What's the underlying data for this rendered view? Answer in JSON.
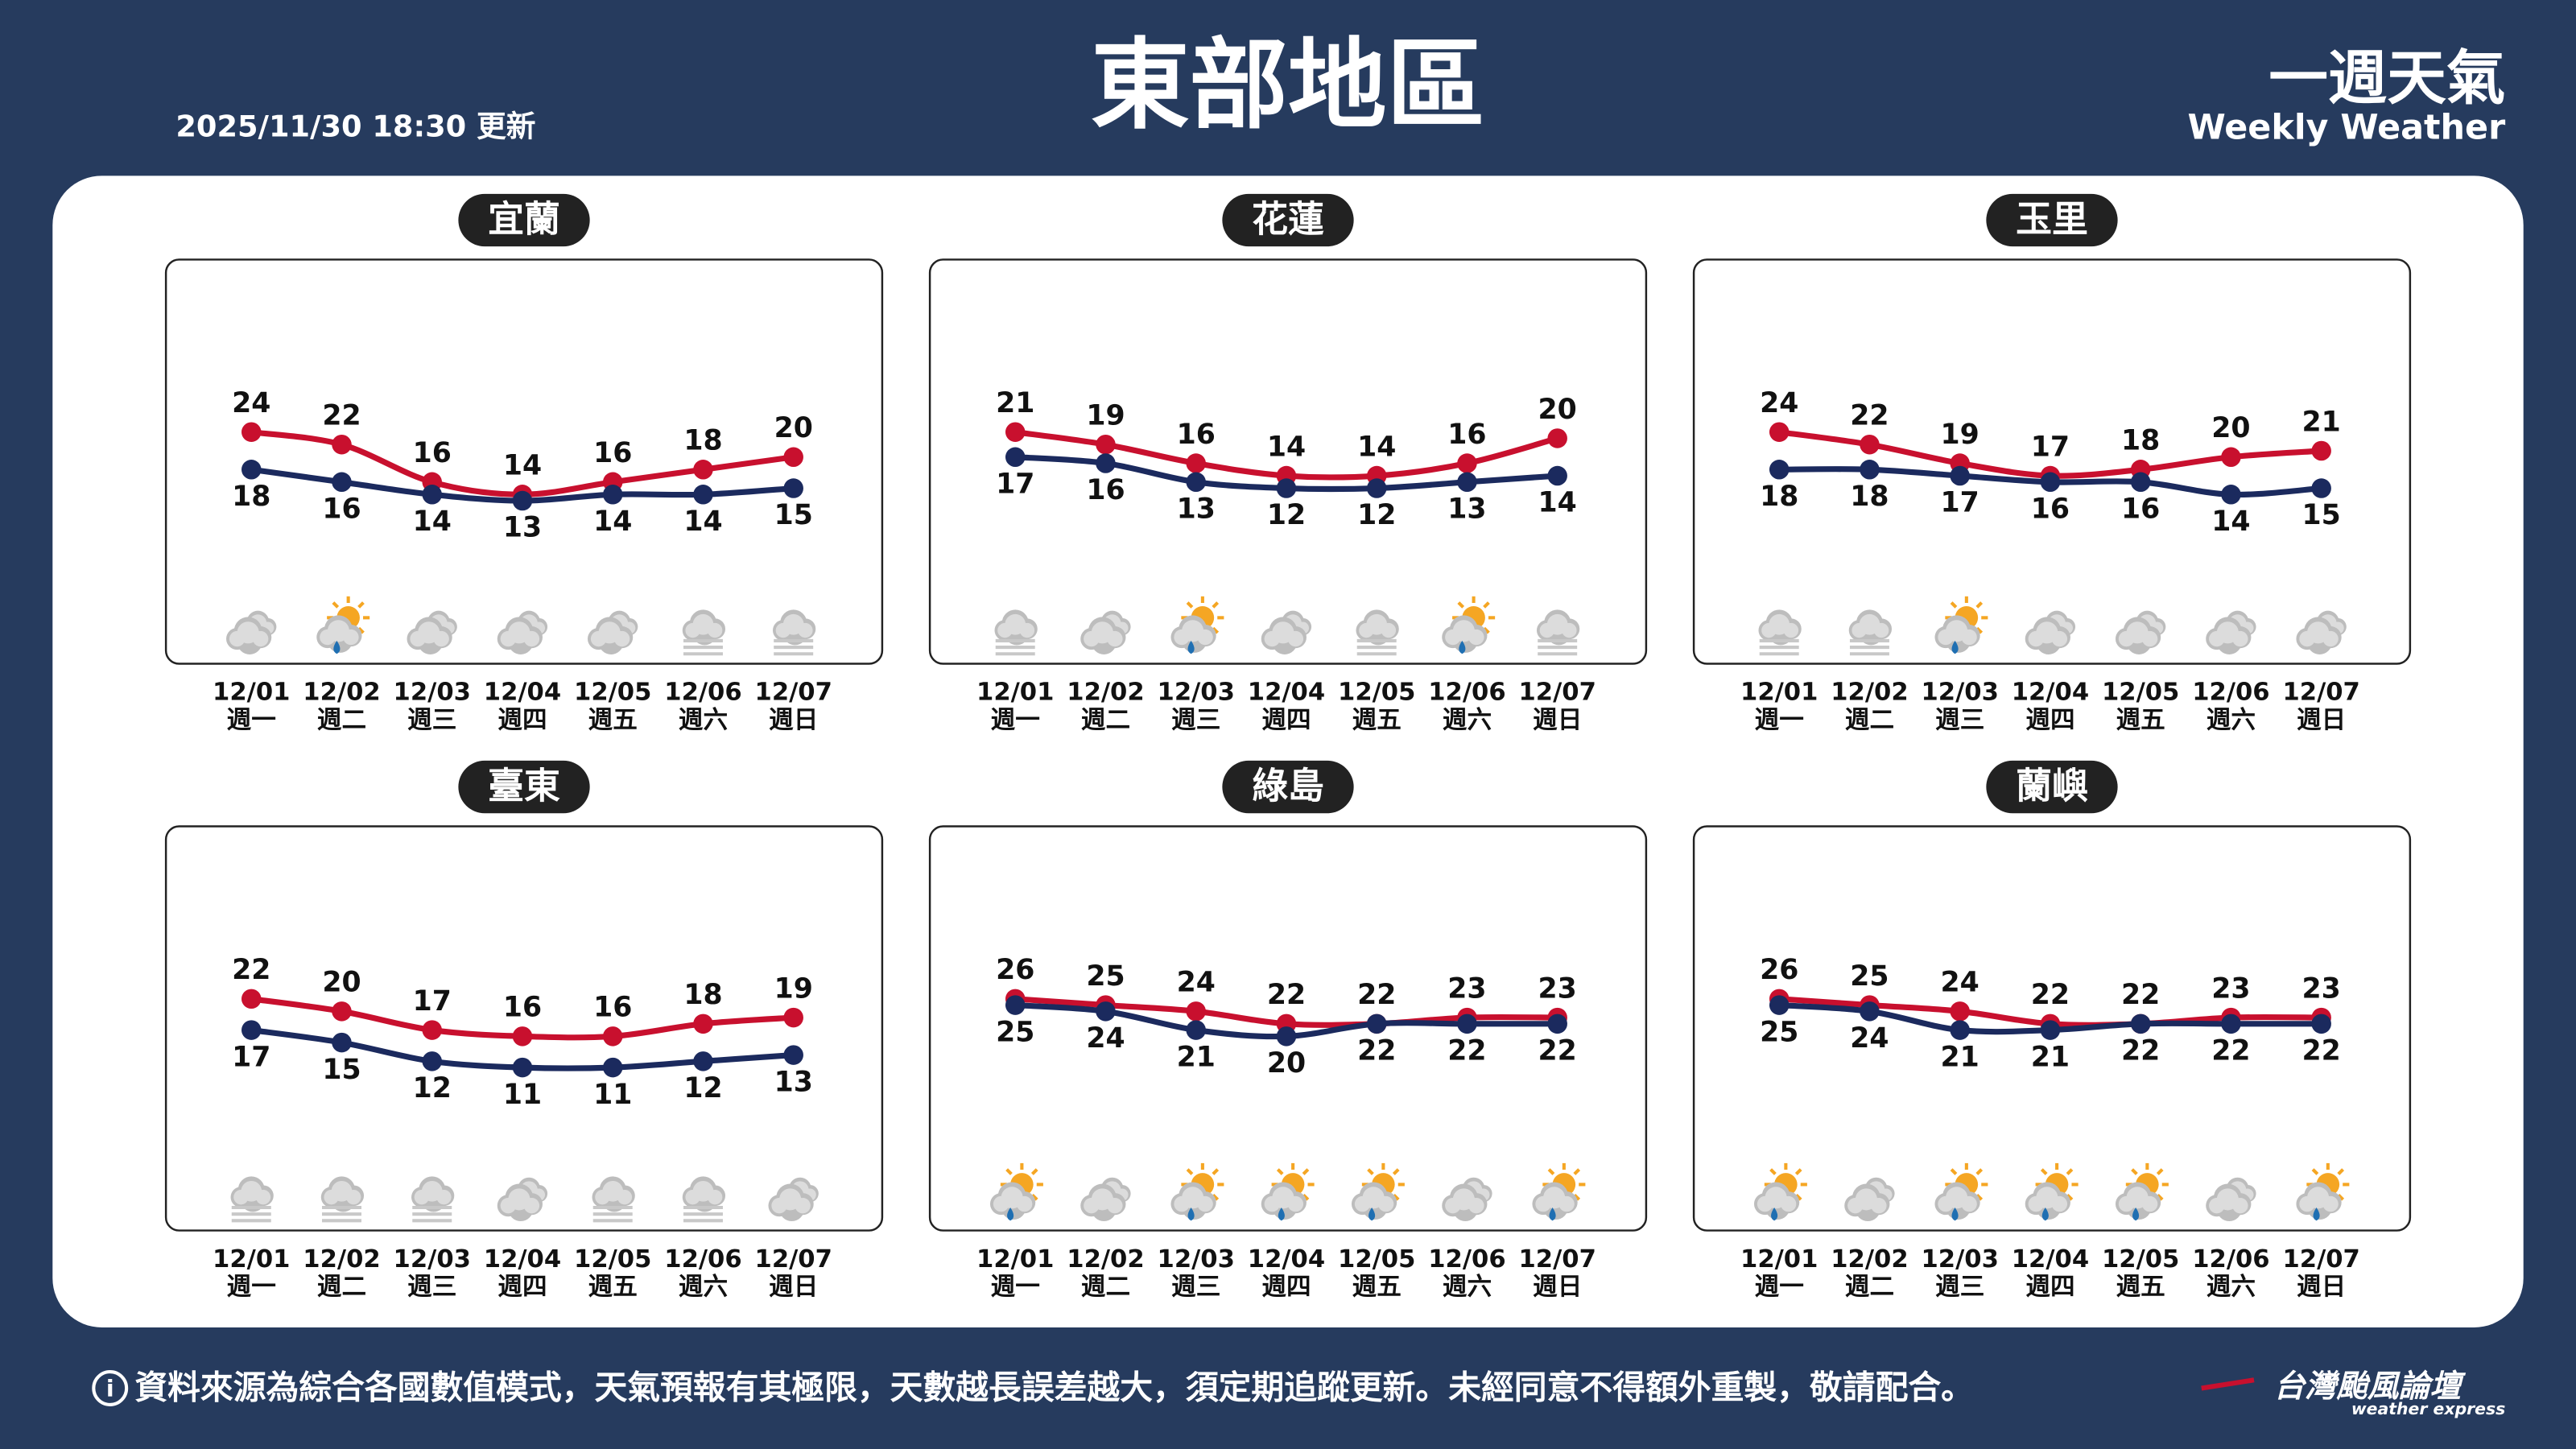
{
  "header": {
    "title": "東部地區",
    "updated": "2025/11/30 18:30 更新",
    "brand": "一週天氣",
    "brand_en": "Weekly Weather"
  },
  "footer": {
    "icon": "i",
    "note": "資料來源為綜合各國數值模式，天氣預報有其極限，天數越長誤差越大，須定期追蹤更新。未經同意不得額外重製，敬請配合。",
    "logo": "台灣颱風論壇",
    "logo_en": "weather express"
  },
  "chart_data": [
    {
      "type": "line",
      "title": "宜蘭",
      "categories": [
        "12/01",
        "12/02",
        "12/03",
        "12/04",
        "12/05",
        "12/06",
        "12/07"
      ],
      "weekdays": [
        "週一",
        "週二",
        "週三",
        "週四",
        "週五",
        "週六",
        "週日"
      ],
      "icons": [
        "cloudy",
        "sun-rain",
        "cloudy",
        "cloudy",
        "cloudy",
        "overcast",
        "overcast"
      ],
      "series": [
        {
          "color": "#c8102e",
          "values": [
            24,
            22,
            16,
            14,
            16,
            18,
            20
          ]
        },
        {
          "color": "#1b2a5e",
          "values": [
            18,
            16,
            14,
            13,
            14,
            14,
            15
          ]
        }
      ]
    },
    {
      "type": "line",
      "title": "花蓮",
      "categories": [
        "12/01",
        "12/02",
        "12/03",
        "12/04",
        "12/05",
        "12/06",
        "12/07"
      ],
      "weekdays": [
        "週一",
        "週二",
        "週三",
        "週四",
        "週五",
        "週六",
        "週日"
      ],
      "icons": [
        "overcast",
        "cloudy",
        "sun-rain",
        "cloudy",
        "overcast",
        "sun-rain",
        "overcast"
      ],
      "series": [
        {
          "color": "#c8102e",
          "values": [
            21,
            19,
            16,
            14,
            14,
            16,
            20
          ]
        },
        {
          "color": "#1b2a5e",
          "values": [
            17,
            16,
            13,
            12,
            12,
            13,
            14
          ]
        }
      ]
    },
    {
      "type": "line",
      "title": "玉里",
      "categories": [
        "12/01",
        "12/02",
        "12/03",
        "12/04",
        "12/05",
        "12/06",
        "12/07"
      ],
      "weekdays": [
        "週一",
        "週二",
        "週三",
        "週四",
        "週五",
        "週六",
        "週日"
      ],
      "icons": [
        "overcast",
        "overcast",
        "sun-rain",
        "cloudy",
        "cloudy",
        "cloudy",
        "cloudy"
      ],
      "series": [
        {
          "color": "#c8102e",
          "values": [
            24,
            22,
            19,
            17,
            18,
            20,
            21
          ]
        },
        {
          "color": "#1b2a5e",
          "values": [
            18,
            18,
            17,
            16,
            16,
            14,
            15
          ]
        }
      ]
    },
    {
      "type": "line",
      "title": "臺東",
      "categories": [
        "12/01",
        "12/02",
        "12/03",
        "12/04",
        "12/05",
        "12/06",
        "12/07"
      ],
      "weekdays": [
        "週一",
        "週二",
        "週三",
        "週四",
        "週五",
        "週六",
        "週日"
      ],
      "icons": [
        "overcast",
        "overcast",
        "overcast",
        "cloudy",
        "overcast",
        "overcast",
        "cloudy"
      ],
      "series": [
        {
          "color": "#c8102e",
          "values": [
            22,
            20,
            17,
            16,
            16,
            18,
            19
          ]
        },
        {
          "color": "#1b2a5e",
          "values": [
            17,
            15,
            12,
            11,
            11,
            12,
            13
          ]
        }
      ]
    },
    {
      "type": "line",
      "title": "綠島",
      "categories": [
        "12/01",
        "12/02",
        "12/03",
        "12/04",
        "12/05",
        "12/06",
        "12/07"
      ],
      "weekdays": [
        "週一",
        "週二",
        "週三",
        "週四",
        "週五",
        "週六",
        "週日"
      ],
      "icons": [
        "sun-rain",
        "cloudy",
        "sun-rain",
        "sun-rain",
        "sun-rain",
        "cloudy",
        "sun-rain"
      ],
      "series": [
        {
          "color": "#c8102e",
          "values": [
            26,
            25,
            24,
            22,
            22,
            23,
            23
          ]
        },
        {
          "color": "#1b2a5e",
          "values": [
            25,
            24,
            21,
            20,
            22,
            22,
            22
          ]
        }
      ]
    },
    {
      "type": "line",
      "title": "蘭嶼",
      "categories": [
        "12/01",
        "12/02",
        "12/03",
        "12/04",
        "12/05",
        "12/06",
        "12/07"
      ],
      "weekdays": [
        "週一",
        "週二",
        "週三",
        "週四",
        "週五",
        "週六",
        "週日"
      ],
      "icons": [
        "sun-rain",
        "cloudy",
        "sun-rain",
        "sun-rain",
        "sun-rain",
        "cloudy",
        "sun-rain"
      ],
      "series": [
        {
          "color": "#c8102e",
          "values": [
            26,
            25,
            24,
            22,
            22,
            23,
            23
          ]
        },
        {
          "color": "#1b2a5e",
          "values": [
            25,
            24,
            21,
            21,
            22,
            22,
            22
          ]
        }
      ]
    }
  ]
}
